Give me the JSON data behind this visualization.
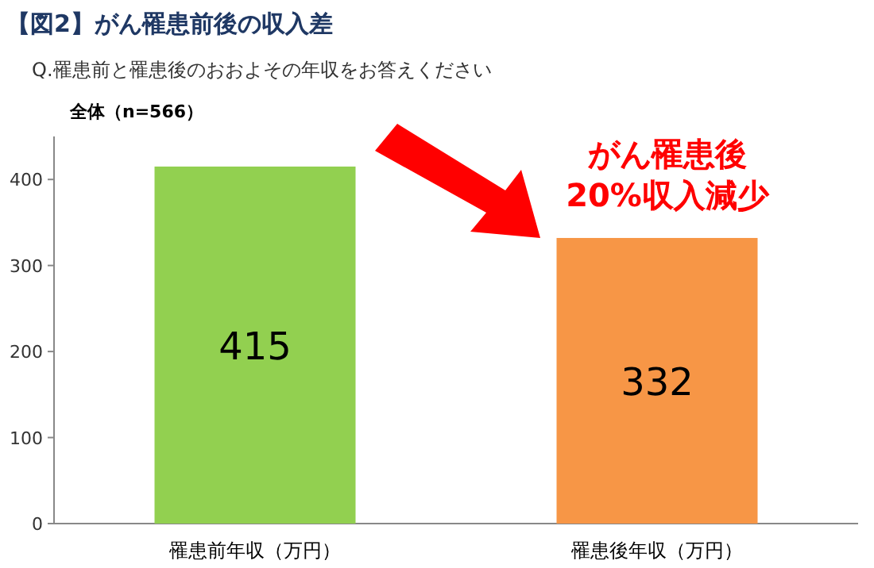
{
  "chart_data": {
    "type": "bar",
    "title": "【図2】がん罹患前後の収入差",
    "subtitle": "Q.罹患前と罹患後のおおよその年収をお答えください",
    "categories": [
      "罹患前年収（万円）",
      "罹患後年収（万円）"
    ],
    "values": [
      415,
      332
    ],
    "colors": [
      "#92d050",
      "#f79646"
    ],
    "ylim": [
      0,
      450
    ],
    "yticks": [
      0,
      100,
      200,
      300,
      400
    ],
    "grid": false,
    "data_labels": true,
    "annotations": [
      "全体（n=566）",
      "がん罹患後\n20%収入減少"
    ]
  }
}
